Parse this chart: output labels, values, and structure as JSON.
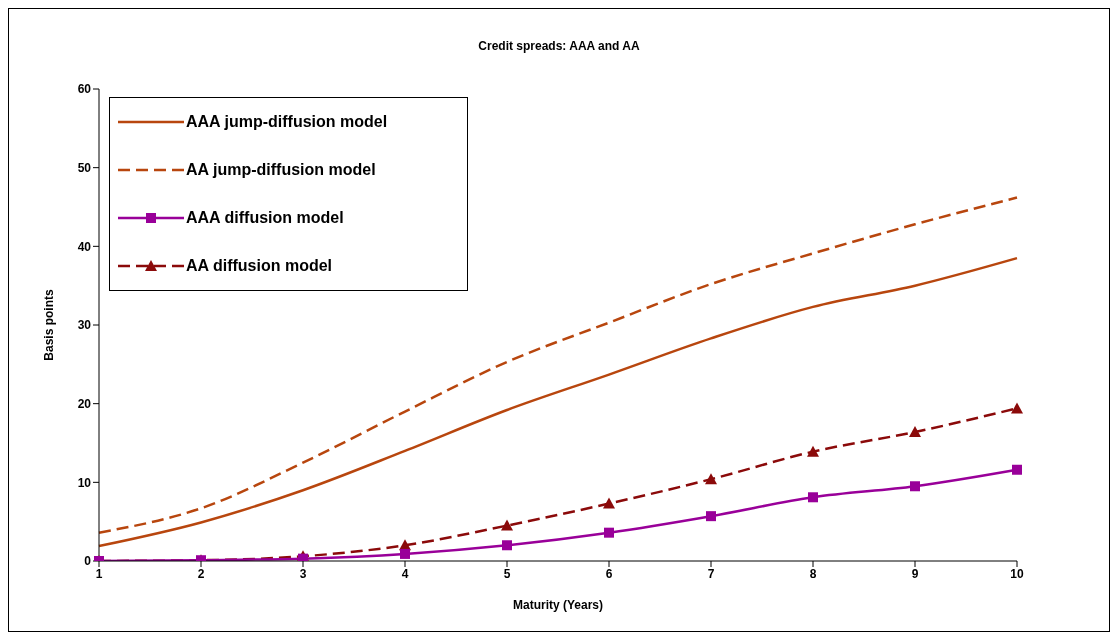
{
  "chart_data": {
    "type": "line",
    "title": "Credit spreads: AAA and AA",
    "xlabel": "Maturity (Years)",
    "ylabel": "Basis points",
    "categories": [
      "1",
      "2",
      "3",
      "4",
      "5",
      "6",
      "7",
      "8",
      "9",
      "10"
    ],
    "ylim": [
      0,
      60
    ],
    "yticks": [
      0,
      10,
      20,
      30,
      40,
      50,
      60
    ],
    "grid": false,
    "legend": "top left",
    "series": [
      {
        "name": "AAA jump-diffusion model",
        "color": "#b8460e",
        "line_style": "solid",
        "marker": "none",
        "values": [
          1.9,
          4.9,
          9,
          14,
          19.2,
          23.7,
          28.3,
          32.3,
          35,
          38.5
        ]
      },
      {
        "name": "AA jump-diffusion model",
        "color": "#b8460e",
        "line_style": "dashed",
        "marker": "none",
        "values": [
          3.6,
          6.7,
          12.5,
          19,
          25.3,
          30.3,
          35.2,
          39.1,
          42.8,
          46.2
        ]
      },
      {
        "name": "AAA diffusion model",
        "color": "#990099",
        "line_style": "solid",
        "marker": "square",
        "values": [
          0,
          0.1,
          0.3,
          0.9,
          2,
          3.6,
          5.7,
          8.1,
          9.5,
          11.6
        ]
      },
      {
        "name": "AA diffusion model",
        "color": "#8b0a0a",
        "line_style": "dashed",
        "marker": "triangle",
        "values": [
          0,
          0.1,
          0.6,
          2,
          4.5,
          7.3,
          10.4,
          13.9,
          16.4,
          19.4
        ]
      }
    ]
  }
}
